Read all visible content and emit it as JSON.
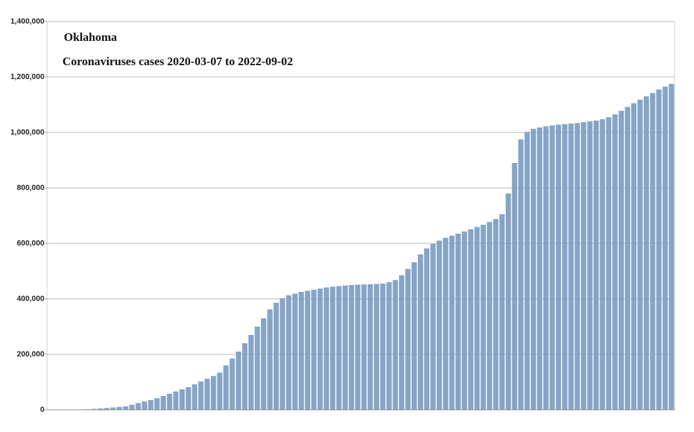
{
  "chart_data": {
    "type": "bar",
    "title": "Oklahoma",
    "subtitle": "Coronaviruses cases 2020-03-07 to 2022-09-02",
    "color": "#7f9fc3",
    "grid": true,
    "ylim": [
      0,
      1400000
    ],
    "yticks": [
      0,
      {
        "value": 200000,
        "label": "200,000"
      },
      {
        "value": 400000,
        "label": "400,000"
      },
      {
        "value": 600000,
        "label": "600,000"
      },
      {
        "value": 800000,
        "label": "800,000"
      },
      {
        "value": 1000000,
        "label": "1,000,000"
      },
      {
        "value": 1200000,
        "label": "1,200,000"
      },
      {
        "value": 1400000,
        "label": "1,400,000"
      }
    ],
    "values": [
      0,
      200,
      400,
      600,
      800,
      1000,
      2000,
      3500,
      5000,
      6500,
      8500,
      10500,
      12500,
      18000,
      24000,
      30000,
      35000,
      42000,
      50000,
      58000,
      66000,
      74000,
      82000,
      92000,
      102000,
      112000,
      122000,
      134000,
      160000,
      185000,
      210000,
      240000,
      270000,
      300000,
      330000,
      362000,
      386000,
      402000,
      413000,
      419000,
      425000,
      429000,
      433000,
      437000,
      441000,
      444000,
      446000,
      448000,
      450000,
      451000,
      452000,
      453000,
      454000,
      455000,
      460000,
      468000,
      485000,
      508000,
      532000,
      560000,
      582000,
      598000,
      610000,
      620000,
      628000,
      635000,
      643000,
      651000,
      659000,
      667000,
      677000,
      688000,
      705000,
      780000,
      890000,
      975000,
      1002000,
      1013000,
      1018000,
      1022000,
      1025000,
      1028000,
      1030000,
      1032000,
      1034000,
      1037000,
      1040000,
      1043000,
      1048000,
      1055000,
      1065000,
      1078000,
      1092000,
      1105000,
      1118000,
      1130000,
      1142000,
      1155000,
      1165000,
      1175000
    ]
  }
}
